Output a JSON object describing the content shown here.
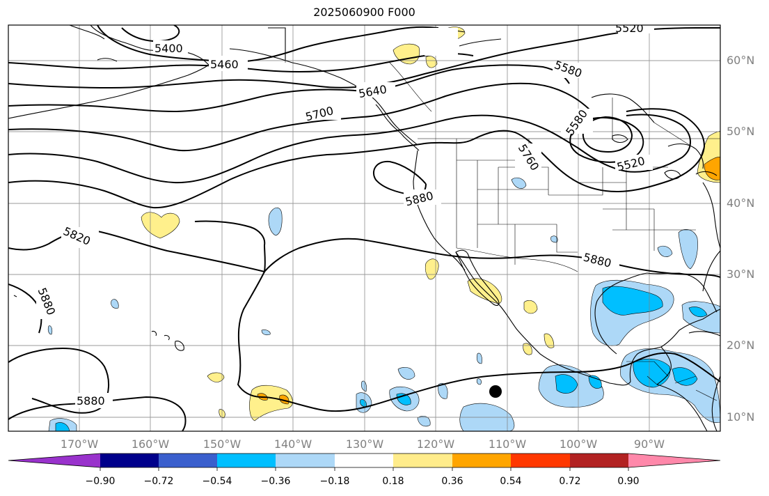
{
  "title": "2025060900 F000",
  "lat_labels": [
    "60°N",
    "50°N",
    "40°N",
    "30°N",
    "20°N",
    "10°N"
  ],
  "lon_labels": [
    "170°W",
    "160°W",
    "150°W",
    "140°W",
    "130°W",
    "120°W",
    "110°W",
    "100°W",
    "90°W"
  ],
  "contour_labels": [
    "5400",
    "5460",
    "5520",
    "5640",
    "5580",
    "5700",
    "5580",
    "5520",
    "5760",
    "5880",
    "5820",
    "5880",
    "5880",
    "5880"
  ],
  "colorbar": {
    "ticks": [
      "−0.90",
      "−0.72",
      "−0.54",
      "−0.36",
      "−0.18",
      "0.18",
      "0.36",
      "0.54",
      "0.72",
      "0.90"
    ],
    "colors": [
      "#9932cc",
      "#00008b",
      "#3a5fcd",
      "#00bfff",
      "#add8f7",
      "#ffffff",
      "#ffec8b",
      "#ffa500",
      "#ff3800",
      "#b22222",
      "#ff88aa"
    ]
  },
  "marker": "storm-center-dot"
}
